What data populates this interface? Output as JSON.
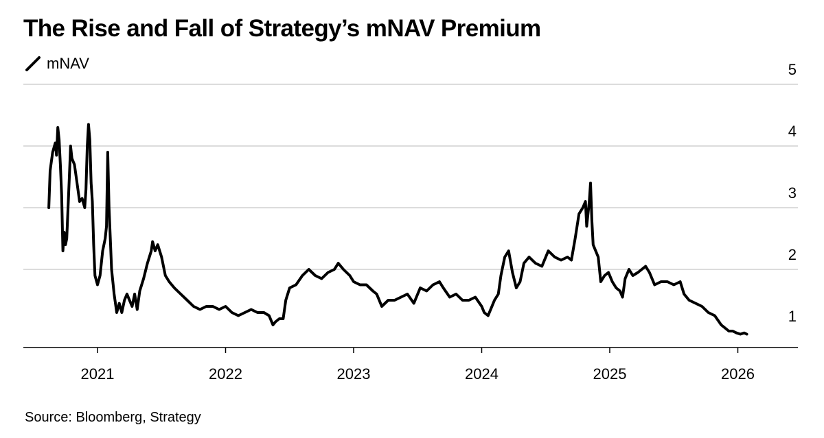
{
  "chart_data": {
    "type": "line",
    "title": "The Rise and Fall of Strategy’s mNAV Premium",
    "xlabel": "",
    "ylabel": "",
    "source": "Source: Bloomberg, Strategy",
    "ylim": [
      0.7,
      5
    ],
    "xlim": [
      2020.57,
      2026.3
    ],
    "y_ticks": [
      1,
      2,
      3,
      4,
      5
    ],
    "y_tick_labels": [
      "1",
      "2",
      "3",
      "4",
      "5"
    ],
    "x_ticks": [
      2021,
      2022,
      2023,
      2024,
      2025,
      2026
    ],
    "x_tick_labels": [
      "2021",
      "2022",
      "2023",
      "2024",
      "2025",
      "2026"
    ],
    "grid": true,
    "legend_position": "top-left",
    "series": [
      {
        "name": "mNAV",
        "color": "#000000",
        "points": [
          [
            2020.62,
            3.0
          ],
          [
            2020.63,
            3.6
          ],
          [
            2020.65,
            3.9
          ],
          [
            2020.67,
            4.05
          ],
          [
            2020.68,
            3.85
          ],
          [
            2020.69,
            4.3
          ],
          [
            2020.7,
            4.1
          ],
          [
            2020.71,
            3.7
          ],
          [
            2020.72,
            3.2
          ],
          [
            2020.73,
            2.3
          ],
          [
            2020.74,
            2.6
          ],
          [
            2020.75,
            2.4
          ],
          [
            2020.76,
            2.5
          ],
          [
            2020.78,
            3.5
          ],
          [
            2020.79,
            4.0
          ],
          [
            2020.8,
            3.8
          ],
          [
            2020.82,
            3.7
          ],
          [
            2020.84,
            3.4
          ],
          [
            2020.86,
            3.1
          ],
          [
            2020.88,
            3.15
          ],
          [
            2020.9,
            3.0
          ],
          [
            2020.91,
            3.3
          ],
          [
            2020.92,
            4.0
          ],
          [
            2020.93,
            4.35
          ],
          [
            2020.94,
            4.1
          ],
          [
            2020.95,
            3.4
          ],
          [
            2020.96,
            3.1
          ],
          [
            2020.97,
            2.4
          ],
          [
            2020.98,
            1.9
          ],
          [
            2021.0,
            1.75
          ],
          [
            2021.02,
            1.9
          ],
          [
            2021.04,
            2.3
          ],
          [
            2021.06,
            2.5
          ],
          [
            2021.07,
            2.7
          ],
          [
            2021.08,
            3.9
          ],
          [
            2021.09,
            3.0
          ],
          [
            2021.11,
            2.0
          ],
          [
            2021.13,
            1.6
          ],
          [
            2021.15,
            1.3
          ],
          [
            2021.17,
            1.45
          ],
          [
            2021.19,
            1.3
          ],
          [
            2021.21,
            1.5
          ],
          [
            2021.23,
            1.6
          ],
          [
            2021.25,
            1.5
          ],
          [
            2021.27,
            1.4
          ],
          [
            2021.29,
            1.6
          ],
          [
            2021.31,
            1.35
          ],
          [
            2021.33,
            1.65
          ],
          [
            2021.36,
            1.85
          ],
          [
            2021.39,
            2.1
          ],
          [
            2021.42,
            2.3
          ],
          [
            2021.43,
            2.45
          ],
          [
            2021.45,
            2.3
          ],
          [
            2021.47,
            2.4
          ],
          [
            2021.5,
            2.2
          ],
          [
            2021.53,
            1.9
          ],
          [
            2021.56,
            1.8
          ],
          [
            2021.6,
            1.7
          ],
          [
            2021.65,
            1.6
          ],
          [
            2021.7,
            1.5
          ],
          [
            2021.75,
            1.4
          ],
          [
            2021.8,
            1.35
          ],
          [
            2021.85,
            1.4
          ],
          [
            2021.9,
            1.4
          ],
          [
            2021.95,
            1.35
          ],
          [
            2022.0,
            1.4
          ],
          [
            2022.05,
            1.3
          ],
          [
            2022.1,
            1.25
          ],
          [
            2022.15,
            1.3
          ],
          [
            2022.2,
            1.35
          ],
          [
            2022.25,
            1.3
          ],
          [
            2022.3,
            1.3
          ],
          [
            2022.34,
            1.25
          ],
          [
            2022.37,
            1.1
          ],
          [
            2022.39,
            1.15
          ],
          [
            2022.42,
            1.2
          ],
          [
            2022.45,
            1.2
          ],
          [
            2022.47,
            1.5
          ],
          [
            2022.5,
            1.7
          ],
          [
            2022.55,
            1.75
          ],
          [
            2022.6,
            1.9
          ],
          [
            2022.65,
            2.0
          ],
          [
            2022.7,
            1.9
          ],
          [
            2022.75,
            1.85
          ],
          [
            2022.8,
            1.95
          ],
          [
            2022.85,
            2.0
          ],
          [
            2022.88,
            2.1
          ],
          [
            2022.92,
            2.0
          ],
          [
            2022.97,
            1.9
          ],
          [
            2023.0,
            1.8
          ],
          [
            2023.05,
            1.75
          ],
          [
            2023.1,
            1.75
          ],
          [
            2023.15,
            1.65
          ],
          [
            2023.18,
            1.6
          ],
          [
            2023.22,
            1.4
          ],
          [
            2023.27,
            1.5
          ],
          [
            2023.32,
            1.5
          ],
          [
            2023.37,
            1.55
          ],
          [
            2023.42,
            1.6
          ],
          [
            2023.47,
            1.45
          ],
          [
            2023.52,
            1.7
          ],
          [
            2023.57,
            1.65
          ],
          [
            2023.62,
            1.75
          ],
          [
            2023.67,
            1.8
          ],
          [
            2023.7,
            1.7
          ],
          [
            2023.75,
            1.55
          ],
          [
            2023.8,
            1.6
          ],
          [
            2023.85,
            1.5
          ],
          [
            2023.9,
            1.5
          ],
          [
            2023.95,
            1.55
          ],
          [
            2024.0,
            1.4
          ],
          [
            2024.02,
            1.3
          ],
          [
            2024.05,
            1.25
          ],
          [
            2024.08,
            1.4
          ],
          [
            2024.1,
            1.5
          ],
          [
            2024.13,
            1.6
          ],
          [
            2024.15,
            1.9
          ],
          [
            2024.18,
            2.2
          ],
          [
            2024.21,
            2.3
          ],
          [
            2024.24,
            1.95
          ],
          [
            2024.27,
            1.7
          ],
          [
            2024.3,
            1.8
          ],
          [
            2024.33,
            2.1
          ],
          [
            2024.37,
            2.2
          ],
          [
            2024.42,
            2.1
          ],
          [
            2024.47,
            2.05
          ],
          [
            2024.52,
            2.3
          ],
          [
            2024.57,
            2.2
          ],
          [
            2024.62,
            2.15
          ],
          [
            2024.67,
            2.2
          ],
          [
            2024.7,
            2.15
          ],
          [
            2024.73,
            2.5
          ],
          [
            2024.76,
            2.9
          ],
          [
            2024.79,
            3.0
          ],
          [
            2024.81,
            3.1
          ],
          [
            2024.82,
            2.7
          ],
          [
            2024.84,
            3.1
          ],
          [
            2024.85,
            3.4
          ],
          [
            2024.86,
            2.8
          ],
          [
            2024.87,
            2.4
          ],
          [
            2024.89,
            2.3
          ],
          [
            2024.91,
            2.2
          ],
          [
            2024.93,
            1.8
          ],
          [
            2024.96,
            1.9
          ],
          [
            2024.99,
            1.95
          ],
          [
            2025.02,
            1.8
          ],
          [
            2025.05,
            1.7
          ],
          [
            2025.08,
            1.65
          ],
          [
            2025.1,
            1.55
          ],
          [
            2025.12,
            1.85
          ],
          [
            2025.15,
            2.0
          ],
          [
            2025.18,
            1.9
          ],
          [
            2025.22,
            1.95
          ],
          [
            2025.25,
            2.0
          ],
          [
            2025.28,
            2.05
          ],
          [
            2025.31,
            1.95
          ],
          [
            2025.35,
            1.75
          ],
          [
            2025.4,
            1.8
          ],
          [
            2025.45,
            1.8
          ],
          [
            2025.5,
            1.75
          ],
          [
            2025.55,
            1.8
          ],
          [
            2025.58,
            1.6
          ],
          [
            2025.62,
            1.5
          ],
          [
            2025.67,
            1.45
          ],
          [
            2025.72,
            1.4
          ],
          [
            2025.77,
            1.3
          ],
          [
            2025.82,
            1.25
          ],
          [
            2025.87,
            1.1
          ],
          [
            2025.9,
            1.05
          ],
          [
            2025.93,
            1.0
          ],
          [
            2025.96,
            1.0
          ],
          [
            2025.99,
            0.97
          ],
          [
            2026.02,
            0.95
          ],
          [
            2026.05,
            0.97
          ],
          [
            2026.07,
            0.95
          ]
        ]
      }
    ]
  }
}
